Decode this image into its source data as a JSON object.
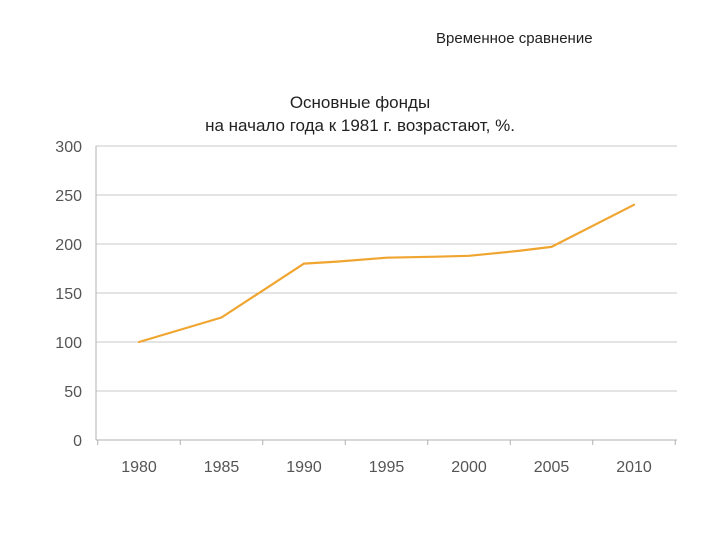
{
  "header": {
    "caption": "Временное сравнение"
  },
  "chart_data": {
    "type": "line",
    "title": "Основные фонды",
    "subtitle": "на начало года к 1981 г. возрастают, %.",
    "xlabel": "",
    "ylabel": "",
    "categories": [
      "1980",
      "1985",
      "1990",
      "1995",
      "2000",
      "2005",
      "2010"
    ],
    "x": [
      1980,
      1985,
      1990,
      1995,
      2000,
      2005,
      2010
    ],
    "yticks": [
      0,
      50,
      100,
      150,
      200,
      250,
      300
    ],
    "ylim": [
      0,
      300
    ],
    "grid": true,
    "legend": "none",
    "series": [
      {
        "points": [
          [
            1980,
            100
          ],
          [
            1985,
            125
          ],
          [
            1990,
            180
          ],
          [
            1992,
            182
          ],
          [
            1995,
            186
          ],
          [
            1998,
            187
          ],
          [
            2000,
            188
          ],
          [
            2003,
            193
          ],
          [
            2005,
            197
          ],
          [
            2010,
            240
          ]
        ],
        "color": "#f0a530"
      }
    ],
    "colors": {
      "line": "#f0a530",
      "grid": "#c8c8c8",
      "axis": "#b0b0b0",
      "tick_text": "#555555"
    }
  }
}
